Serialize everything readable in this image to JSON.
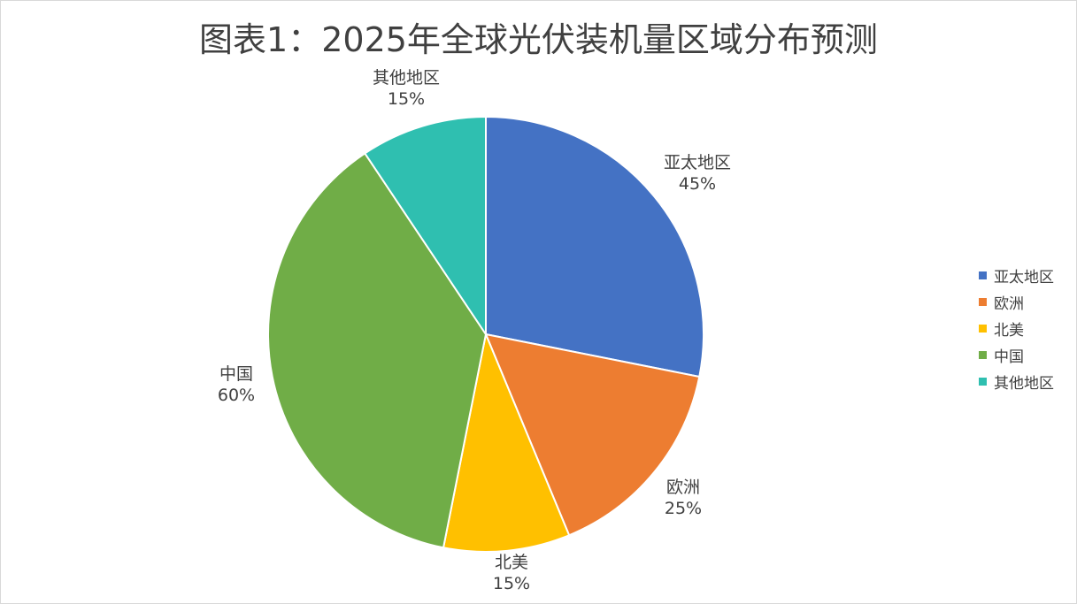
{
  "chart_data": {
    "type": "pie",
    "title": "图表1：2025年全球光伏装机量区域分布预测",
    "categories": [
      "亚太地区",
      "欧洲",
      "北美",
      "中国",
      "其他地区"
    ],
    "values": [
      45,
      25,
      15,
      60,
      15
    ],
    "value_labels": [
      "45%",
      "25%",
      "15%",
      "60%",
      "15%"
    ],
    "colors": [
      "#4472c4",
      "#ed7d31",
      "#ffc000",
      "#70ad47",
      "#2fbfb0"
    ],
    "start_angle_deg": 0,
    "direction": "clockwise",
    "legend_position": "right"
  }
}
